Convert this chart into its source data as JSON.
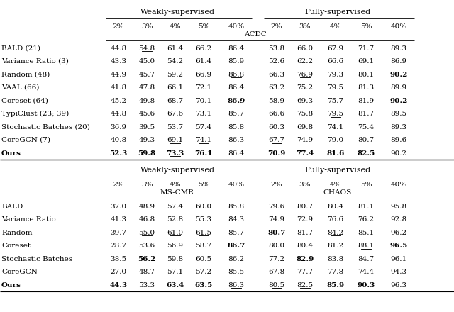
{
  "acdc_rows": [
    {
      "name": "BALD (21)",
      "weak": [
        "44.8",
        "54.8",
        "61.4",
        "66.2",
        "86.4"
      ],
      "full": [
        "53.8",
        "66.0",
        "67.9",
        "71.7",
        "89.3"
      ],
      "weak_ul": [
        false,
        true,
        false,
        false,
        false
      ],
      "full_ul": [
        false,
        false,
        false,
        false,
        false
      ],
      "weak_bold": [
        false,
        false,
        false,
        false,
        false
      ],
      "full_bold": [
        false,
        false,
        false,
        false,
        false
      ]
    },
    {
      "name": "Variance Ratio (3)",
      "weak": [
        "43.3",
        "45.0",
        "54.2",
        "61.4",
        "85.9"
      ],
      "full": [
        "52.6",
        "62.2",
        "66.6",
        "69.1",
        "86.9"
      ],
      "weak_ul": [
        false,
        false,
        false,
        false,
        false
      ],
      "full_ul": [
        false,
        false,
        false,
        false,
        false
      ],
      "weak_bold": [
        false,
        false,
        false,
        false,
        false
      ],
      "full_bold": [
        false,
        false,
        false,
        false,
        false
      ]
    },
    {
      "name": "Random (48)",
      "weak": [
        "44.9",
        "45.7",
        "59.2",
        "66.9",
        "86.8"
      ],
      "full": [
        "66.3",
        "76.9",
        "79.3",
        "80.1",
        "90.2"
      ],
      "weak_ul": [
        false,
        false,
        false,
        false,
        true
      ],
      "full_ul": [
        false,
        true,
        false,
        false,
        false
      ],
      "weak_bold": [
        false,
        false,
        false,
        false,
        false
      ],
      "full_bold": [
        false,
        false,
        false,
        false,
        true
      ]
    },
    {
      "name": "VAAL (66)",
      "weak": [
        "41.8",
        "47.8",
        "66.1",
        "72.1",
        "86.4"
      ],
      "full": [
        "63.2",
        "75.2",
        "79.5",
        "81.3",
        "89.9"
      ],
      "weak_ul": [
        false,
        false,
        false,
        false,
        false
      ],
      "full_ul": [
        false,
        false,
        true,
        false,
        false
      ],
      "weak_bold": [
        false,
        false,
        false,
        false,
        false
      ],
      "full_bold": [
        false,
        false,
        false,
        false,
        false
      ]
    },
    {
      "name": "Coreset (64)",
      "weak": [
        "45.2",
        "49.8",
        "68.7",
        "70.1",
        "86.9"
      ],
      "full": [
        "58.9",
        "69.3",
        "75.7",
        "81.9",
        "90.2"
      ],
      "weak_ul": [
        true,
        false,
        false,
        false,
        false
      ],
      "full_ul": [
        false,
        false,
        false,
        true,
        false
      ],
      "weak_bold": [
        false,
        false,
        false,
        false,
        true
      ],
      "full_bold": [
        false,
        false,
        false,
        false,
        true
      ]
    },
    {
      "name": "TypiClust (23; 39)",
      "weak": [
        "44.8",
        "45.6",
        "67.6",
        "73.1",
        "85.7"
      ],
      "full": [
        "66.6",
        "75.8",
        "79.5",
        "81.7",
        "89.5"
      ],
      "weak_ul": [
        false,
        false,
        false,
        false,
        false
      ],
      "full_ul": [
        false,
        false,
        true,
        false,
        false
      ],
      "weak_bold": [
        false,
        false,
        false,
        false,
        false
      ],
      "full_bold": [
        false,
        false,
        false,
        false,
        false
      ]
    },
    {
      "name": "Stochastic Batches (20)",
      "weak": [
        "36.9",
        "39.5",
        "53.7",
        "57.4",
        "85.8"
      ],
      "full": [
        "60.3",
        "69.8",
        "74.1",
        "75.4",
        "89.3"
      ],
      "weak_ul": [
        false,
        false,
        false,
        false,
        false
      ],
      "full_ul": [
        false,
        false,
        false,
        false,
        false
      ],
      "weak_bold": [
        false,
        false,
        false,
        false,
        false
      ],
      "full_bold": [
        false,
        false,
        false,
        false,
        false
      ]
    },
    {
      "name": "CoreGCN (7)",
      "weak": [
        "40.8",
        "49.3",
        "69.1",
        "74.1",
        "86.3"
      ],
      "full": [
        "67.7",
        "74.9",
        "79.0",
        "80.7",
        "89.6"
      ],
      "weak_ul": [
        false,
        false,
        true,
        true,
        false
      ],
      "full_ul": [
        true,
        false,
        false,
        false,
        false
      ],
      "weak_bold": [
        false,
        false,
        false,
        false,
        false
      ],
      "full_bold": [
        false,
        false,
        false,
        false,
        false
      ]
    },
    {
      "name": "Ours",
      "weak": [
        "52.3",
        "59.8",
        "73.3",
        "76.1",
        "86.4"
      ],
      "full": [
        "70.9",
        "77.4",
        "81.6",
        "82.5",
        "90.2"
      ],
      "weak_ul": [
        false,
        false,
        true,
        false,
        false
      ],
      "full_ul": [
        false,
        false,
        false,
        false,
        false
      ],
      "weak_bold": [
        true,
        true,
        true,
        true,
        false
      ],
      "full_bold": [
        true,
        true,
        true,
        true,
        false
      ]
    }
  ],
  "mscmr_rows": [
    {
      "name": "BALD",
      "weak": [
        "37.0",
        "48.9",
        "57.4",
        "60.0",
        "85.8"
      ],
      "full": [
        "79.6",
        "80.7",
        "80.4",
        "81.1",
        "95.8"
      ],
      "weak_ul": [
        false,
        false,
        false,
        false,
        false
      ],
      "full_ul": [
        false,
        false,
        false,
        false,
        false
      ],
      "weak_bold": [
        false,
        false,
        false,
        false,
        false
      ],
      "full_bold": [
        false,
        false,
        false,
        false,
        false
      ]
    },
    {
      "name": "Variance Ratio",
      "weak": [
        "41.3",
        "46.8",
        "52.8",
        "55.3",
        "84.3"
      ],
      "full": [
        "74.9",
        "72.9",
        "76.6",
        "76.2",
        "92.8"
      ],
      "weak_ul": [
        true,
        false,
        false,
        false,
        false
      ],
      "full_ul": [
        false,
        false,
        false,
        false,
        false
      ],
      "weak_bold": [
        false,
        false,
        false,
        false,
        false
      ],
      "full_bold": [
        false,
        false,
        false,
        false,
        false
      ]
    },
    {
      "name": "Random",
      "weak": [
        "39.7",
        "55.0",
        "61.0",
        "61.5",
        "85.7"
      ],
      "full": [
        "80.7",
        "81.7",
        "84.2",
        "85.1",
        "96.2"
      ],
      "weak_ul": [
        false,
        true,
        true,
        true,
        false
      ],
      "full_ul": [
        false,
        false,
        true,
        false,
        false
      ],
      "weak_bold": [
        false,
        false,
        false,
        false,
        false
      ],
      "full_bold": [
        true,
        false,
        false,
        false,
        false
      ]
    },
    {
      "name": "Coreset",
      "weak": [
        "28.7",
        "53.6",
        "56.9",
        "58.7",
        "86.7"
      ],
      "full": [
        "80.0",
        "80.4",
        "81.2",
        "88.1",
        "96.5"
      ],
      "weak_ul": [
        false,
        false,
        false,
        false,
        false
      ],
      "full_ul": [
        false,
        false,
        false,
        true,
        false
      ],
      "weak_bold": [
        false,
        false,
        false,
        false,
        true
      ],
      "full_bold": [
        false,
        false,
        false,
        false,
        true
      ]
    },
    {
      "name": "Stochastic Batches",
      "weak": [
        "38.5",
        "56.2",
        "59.8",
        "60.5",
        "86.2"
      ],
      "full": [
        "77.2",
        "82.9",
        "83.8",
        "84.7",
        "96.1"
      ],
      "weak_ul": [
        false,
        false,
        false,
        false,
        false
      ],
      "full_ul": [
        false,
        false,
        false,
        false,
        false
      ],
      "weak_bold": [
        false,
        true,
        false,
        false,
        false
      ],
      "full_bold": [
        false,
        true,
        false,
        false,
        false
      ]
    },
    {
      "name": "CoreGCN",
      "weak": [
        "27.0",
        "48.7",
        "57.1",
        "57.2",
        "85.5"
      ],
      "full": [
        "67.8",
        "77.7",
        "77.8",
        "74.4",
        "94.3"
      ],
      "weak_ul": [
        false,
        false,
        false,
        false,
        false
      ],
      "full_ul": [
        false,
        false,
        false,
        false,
        false
      ],
      "weak_bold": [
        false,
        false,
        false,
        false,
        false
      ],
      "full_bold": [
        false,
        false,
        false,
        false,
        false
      ]
    },
    {
      "name": "Ours",
      "weak": [
        "44.3",
        "53.3",
        "63.4",
        "63.5",
        "86.3"
      ],
      "full": [
        "80.5",
        "82.5",
        "85.9",
        "90.3",
        "96.3"
      ],
      "weak_ul": [
        false,
        false,
        false,
        false,
        true
      ],
      "full_ul": [
        true,
        true,
        false,
        false,
        false
      ],
      "weak_bold": [
        true,
        false,
        true,
        true,
        false
      ],
      "full_bold": [
        false,
        false,
        true,
        true,
        false
      ]
    }
  ],
  "fs_name": 7.5,
  "fs_data": 7.5,
  "fs_header": 7.5,
  "fs_section": 8.0
}
